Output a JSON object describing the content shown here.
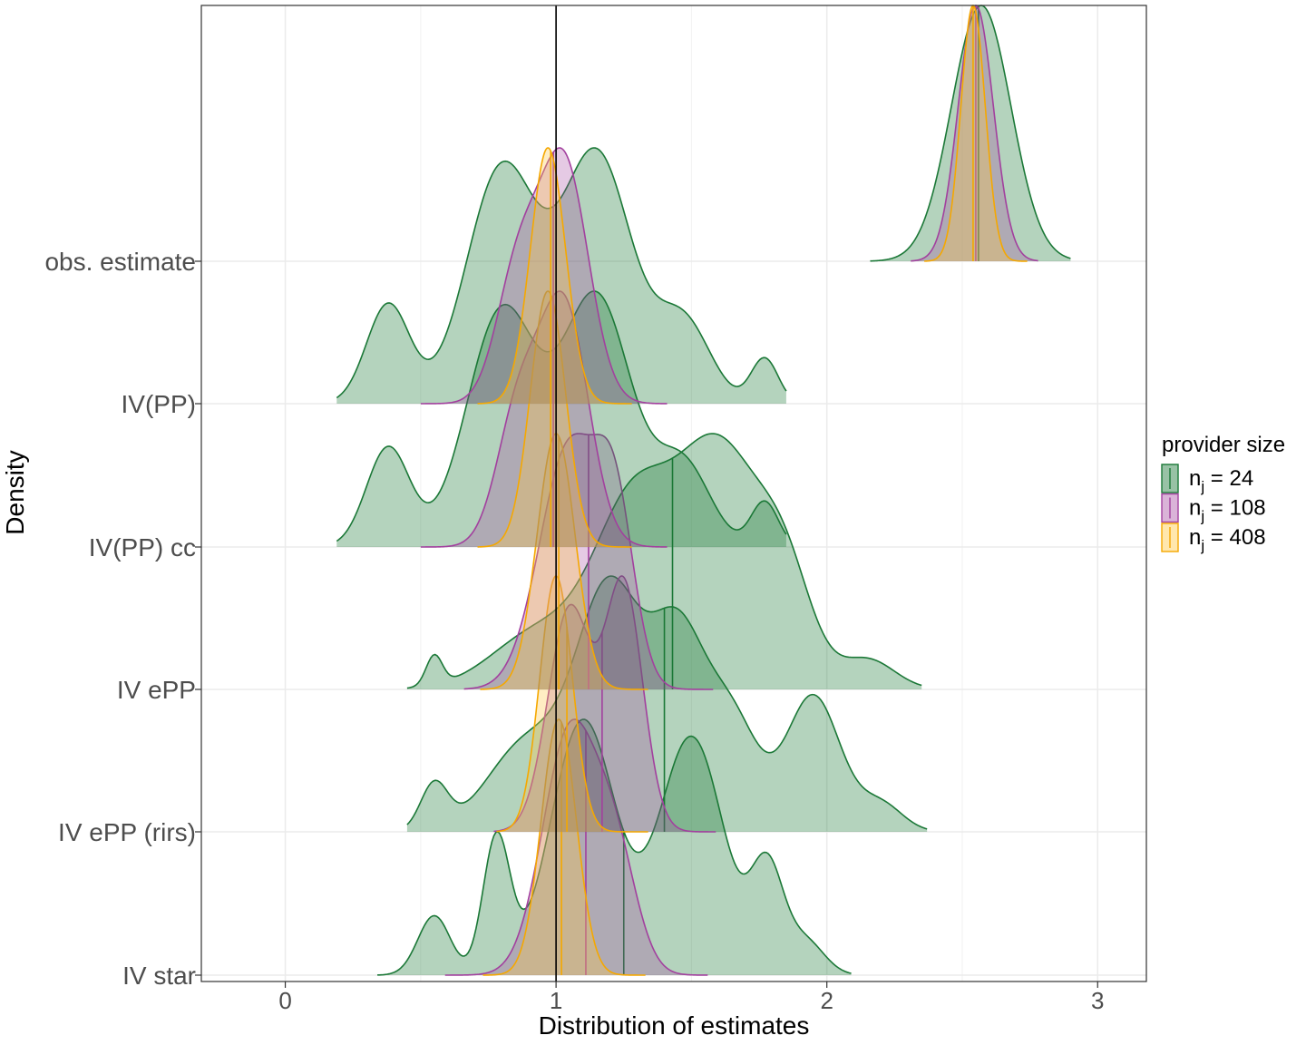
{
  "chart_data": {
    "type": "ridgeline-density",
    "xlabel": "Distribution of estimates",
    "ylabel": "Density",
    "xlim": [
      -0.31,
      3.18
    ],
    "x_ticks": [
      {
        "value": 0,
        "label": "0"
      },
      {
        "value": 1,
        "label": "1"
      },
      {
        "value": 2,
        "label": "2"
      },
      {
        "value": 3,
        "label": "3"
      }
    ],
    "reference_line_x": 1,
    "grid": true,
    "legend": {
      "title": "provider size",
      "placement": "right",
      "entries": [
        {
          "base": "n",
          "sub": "j",
          "rest": " = 24"
        },
        {
          "base": "n",
          "sub": "j",
          "rest": " = 108"
        },
        {
          "base": "n",
          "sub": "j",
          "rest": " = 408"
        }
      ]
    },
    "series": [
      {
        "key": "n24",
        "stroke": "#1b7837",
        "fill": "#1b7837",
        "fill_opacity": 0.33
      },
      {
        "key": "n108",
        "stroke": "#a2409e",
        "fill": "#a2409e",
        "fill_opacity": 0.28
      },
      {
        "key": "n408",
        "stroke": "#f5a800",
        "fill": "#ffc94a",
        "fill_opacity": 0.33
      }
    ],
    "categories": [
      {
        "label": "obs. estimate",
        "densities": {
          "n24": {
            "range": [
              2.16,
              2.9
            ],
            "median": 2.56,
            "peaks": [
              [
                2.57,
                0.11,
                1.0
              ]
            ],
            "trim": 0.02
          },
          "n108": {
            "range": [
              2.31,
              2.78
            ],
            "median": 2.55,
            "peaks": [
              [
                2.55,
                0.065,
                1.0
              ]
            ],
            "trim": 0.02
          },
          "n408": {
            "range": [
              2.36,
              2.74
            ],
            "median": 2.54,
            "peaks": [
              [
                2.54,
                0.045,
                1.0
              ]
            ],
            "trim": 0.02
          }
        }
      },
      {
        "label": "IV(PP)",
        "densities": {
          "n24": {
            "range": [
              0.19,
              1.85
            ],
            "median": 0.99,
            "peaks": [
              [
                0.38,
                0.08,
                0.22
              ],
              [
                0.8,
                0.13,
                0.52
              ],
              [
                1.15,
                0.13,
                0.55
              ],
              [
                1.47,
                0.1,
                0.18
              ],
              [
                1.77,
                0.05,
                0.1
              ]
            ],
            "trim": 0.02
          },
          "n108": {
            "range": [
              0.5,
              1.41
            ],
            "median": 0.99,
            "peaks": [
              [
                0.86,
                0.08,
                0.5
              ],
              [
                1.03,
                0.09,
                0.92
              ]
            ],
            "trim": 0.02
          },
          "n408": {
            "range": [
              0.71,
              1.28
            ],
            "median": 0.98,
            "peaks": [
              [
                0.97,
                0.065,
                1.0
              ]
            ],
            "trim": 0.02
          }
        }
      },
      {
        "label": "IV(PP) cc",
        "densities": {
          "n24": {
            "range": [
              0.19,
              1.85
            ],
            "median": 0.99,
            "peaks": [
              [
                0.38,
                0.08,
                0.22
              ],
              [
                0.8,
                0.13,
                0.52
              ],
              [
                1.15,
                0.13,
                0.55
              ],
              [
                1.47,
                0.1,
                0.18
              ],
              [
                1.77,
                0.05,
                0.1
              ]
            ],
            "trim": 0.02
          },
          "n108": {
            "range": [
              0.5,
              1.41
            ],
            "median": 0.99,
            "peaks": [
              [
                0.86,
                0.08,
                0.5
              ],
              [
                1.03,
                0.09,
                0.92
              ]
            ],
            "trim": 0.02
          },
          "n408": {
            "range": [
              0.71,
              1.28
            ],
            "median": 0.98,
            "peaks": [
              [
                0.97,
                0.065,
                1.0
              ]
            ],
            "trim": 0.02
          }
        }
      },
      {
        "label": "IV ePP",
        "densities": {
          "n24": {
            "range": [
              0.45,
              2.35
            ],
            "median": 1.43,
            "peaks": [
              [
                0.55,
                0.03,
                0.05
              ],
              [
                0.95,
                0.18,
                0.1
              ],
              [
                1.28,
                0.14,
                0.28
              ],
              [
                1.6,
                0.16,
                0.4
              ],
              [
                1.85,
                0.1,
                0.15
              ],
              [
                2.15,
                0.1,
                0.05
              ]
            ],
            "trim": 0.02
          },
          "n108": {
            "range": [
              0.66,
              1.58
            ],
            "median": 1.12,
            "peaks": [
              [
                1.05,
                0.11,
                0.6
              ],
              [
                1.22,
                0.07,
                0.38
              ]
            ],
            "trim": 0.02
          },
          "n408": {
            "range": [
              0.72,
              1.34
            ],
            "median": 1.01,
            "peaks": [
              [
                1.0,
                0.07,
                1.0
              ]
            ],
            "trim": 0.02
          }
        }
      },
      {
        "label": "IV ePP (rirs)",
        "densities": {
          "n24": {
            "range": [
              0.45,
              2.37
            ],
            "median": 1.4,
            "peaks": [
              [
                0.55,
                0.05,
                0.05
              ],
              [
                0.9,
                0.15,
                0.1
              ],
              [
                1.2,
                0.12,
                0.26
              ],
              [
                1.45,
                0.1,
                0.2
              ],
              [
                1.65,
                0.1,
                0.12
              ],
              [
                1.95,
                0.1,
                0.15
              ],
              [
                2.2,
                0.08,
                0.03
              ]
            ],
            "trim": 0.02
          },
          "n108": {
            "range": [
              0.77,
              1.59
            ],
            "median": 1.17,
            "peaks": [
              [
                1.05,
                0.08,
                0.5
              ],
              [
                1.25,
                0.07,
                0.55
              ]
            ],
            "trim": 0.02
          },
          "n408": {
            "range": [
              0.78,
              1.34
            ],
            "median": 1.04,
            "peaks": [
              [
                1.0,
                0.06,
                1.0
              ]
            ],
            "trim": 0.02
          }
        }
      },
      {
        "label": "IV star",
        "densities": {
          "n24": {
            "range": [
              0.34,
              2.09
            ],
            "median": 1.25,
            "peaks": [
              [
                0.55,
                0.06,
                0.07
              ],
              [
                0.78,
                0.05,
                0.16
              ],
              [
                1.1,
                0.12,
                0.3
              ],
              [
                1.5,
                0.12,
                0.28
              ],
              [
                1.78,
                0.06,
                0.12
              ],
              [
                1.92,
                0.07,
                0.04
              ]
            ],
            "trim": 0.02
          },
          "n108": {
            "range": [
              0.59,
              1.56
            ],
            "median": 1.11,
            "peaks": [
              [
                1.05,
                0.1,
                0.55
              ],
              [
                1.22,
                0.08,
                0.25
              ]
            ],
            "trim": 0.02
          },
          "n408": {
            "range": [
              0.73,
              1.33
            ],
            "median": 1.02,
            "peaks": [
              [
                1.01,
                0.065,
                1.0
              ]
            ],
            "trim": 0.02
          }
        }
      }
    ]
  }
}
